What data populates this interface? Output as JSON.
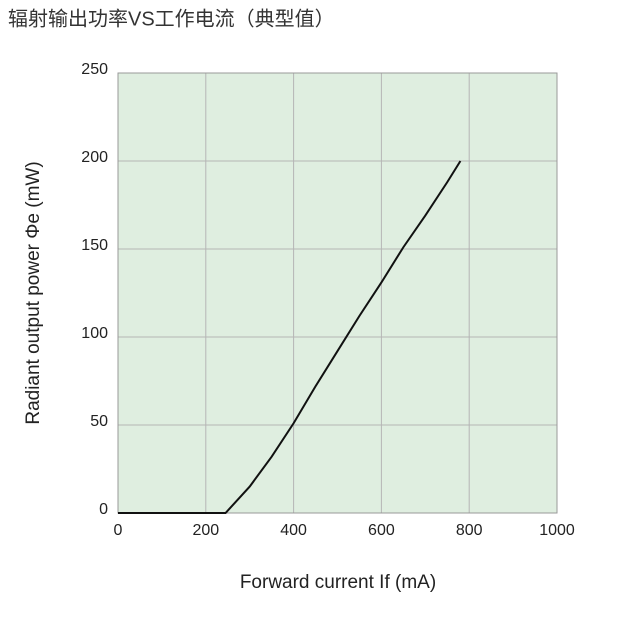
{
  "chart_data": {
    "type": "line",
    "title": "辐射输出功率VS工作电流（典型值）",
    "xlabel": "Forward current If (mA)",
    "ylabel": "Radiant output power Φe (mW)",
    "x": [
      0,
      245,
      300,
      350,
      400,
      450,
      500,
      550,
      600,
      650,
      700,
      750,
      780
    ],
    "series": [
      {
        "color": "#111111",
        "values": [
          0,
          0,
          15,
          32,
          51,
          72,
          92,
          112,
          131,
          151,
          169,
          188,
          200
        ]
      }
    ],
    "xlim": [
      0,
      1000
    ],
    "xticks": [
      0,
      200,
      400,
      600,
      800,
      1000
    ],
    "ylim": [
      0,
      250
    ],
    "yticks": [
      0,
      50,
      100,
      150,
      200,
      250
    ],
    "grid": true,
    "plot_background": "#dfeee0"
  }
}
